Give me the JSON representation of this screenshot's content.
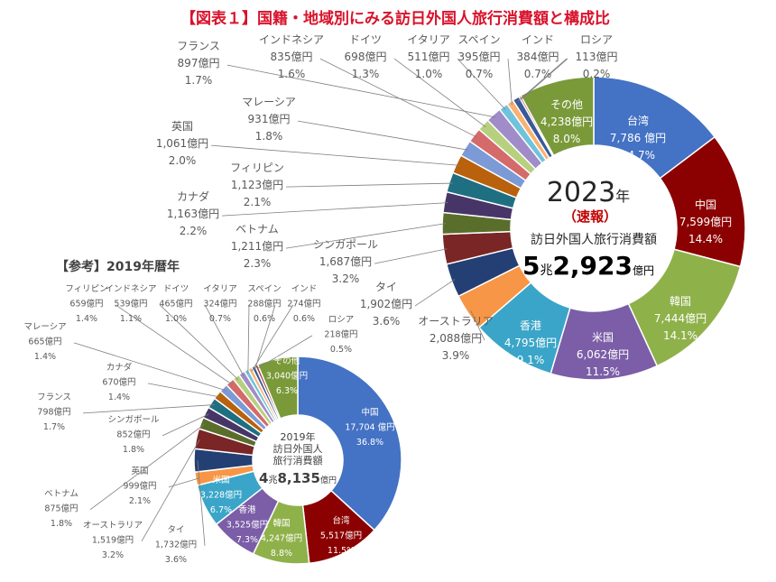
{
  "title": "【図表１】国籍・地域別にみる訪日外国人旅行消費額と構成比",
  "title_bracket": "【図表１】",
  "title_main": "国籍・地域別にみる訪日外国人旅行消費額と構成比",
  "colors": {
    "title_red": "#d9122b",
    "red_text": "#c00000",
    "label_gray": "#595959",
    "leader_line": "#7f7f7f"
  },
  "chart_data": [
    {
      "type": "pie",
      "variant": "donut",
      "center_text": {
        "year": "2023",
        "year_suffix": "年",
        "note": "（速報）",
        "caption": "訪日外国人旅行消費額",
        "total_cho": "5",
        "cho": "兆",
        "total_rest": "2,923",
        "oku_yen": "億円"
      },
      "slices": [
        {
          "name": "台湾",
          "amount": "7,786 億円",
          "value": 7786,
          "percent": "14.7%",
          "color": "#4472c4"
        },
        {
          "name": "中国",
          "amount": "7,599億円",
          "value": 7599,
          "percent": "14.4%",
          "color": "#8b0000"
        },
        {
          "name": "韓国",
          "amount": "7,444億円",
          "value": 7444,
          "percent": "14.1%",
          "color": "#8fb14a"
        },
        {
          "name": "米国",
          "amount": "6,062億円",
          "value": 6062,
          "percent": "11.5%",
          "color": "#7b5ea7"
        },
        {
          "name": "香港",
          "amount": "4,795億円",
          "value": 4795,
          "percent": "9.1%",
          "color": "#3aa5c8"
        },
        {
          "name": "オーストラリア",
          "amount": "2,088億円",
          "value": 2088,
          "percent": "3.9%",
          "color": "#f79646"
        },
        {
          "name": "タイ",
          "amount": "1,902億円",
          "value": 1902,
          "percent": "3.6%",
          "color": "#243f73"
        },
        {
          "name": "シンガポール",
          "amount": "1,687億円",
          "value": 1687,
          "percent": "3.2%",
          "color": "#7a2526"
        },
        {
          "name": "ベトナム",
          "amount": "1,211億円",
          "value": 1211,
          "percent": "2.3%",
          "color": "#5a6e2c"
        },
        {
          "name": "カナダ",
          "amount": "1,163億円",
          "value": 1163,
          "percent": "2.2%",
          "color": "#483568"
        },
        {
          "name": "フィリピン",
          "amount": "1,123億円",
          "value": 1123,
          "percent": "2.1%",
          "color": "#1f6f82"
        },
        {
          "name": "英国",
          "amount": "1,061億円",
          "value": 1061,
          "percent": "2.0%",
          "color": "#b9610c"
        },
        {
          "name": "マレーシア",
          "amount": "931億円",
          "value": 931,
          "percent": "1.8%",
          "color": "#7b9ad6"
        },
        {
          "name": "インドネシア",
          "amount": "835億円",
          "value": 835,
          "percent": "1.6%",
          "color": "#d46a6a"
        },
        {
          "name": "ドイツ",
          "amount": "698億円",
          "value": 698,
          "percent": "1.3%",
          "color": "#b7d07f"
        },
        {
          "name": "フランス",
          "amount": "897億円",
          "value": 897,
          "percent": "1.7%",
          "color": "#a08cc8"
        },
        {
          "name": "イタリア",
          "amount": "511億円",
          "value": 511,
          "percent": "1.0%",
          "color": "#6fc3dc"
        },
        {
          "name": "スペイン",
          "amount": "395億円",
          "value": 395,
          "percent": "0.7%",
          "color": "#fab171"
        },
        {
          "name": "インド",
          "amount": "384億円",
          "value": 384,
          "percent": "0.7%",
          "color": "#3b5998"
        },
        {
          "name": "ロシア",
          "amount": "113億円",
          "value": 113,
          "percent": "0.2%",
          "color": "#a33b3b"
        },
        {
          "name": "その他",
          "amount": "4,238億円",
          "value": 4238,
          "percent": "8.0%",
          "color": "#7a9a3a"
        }
      ]
    },
    {
      "type": "pie",
      "variant": "donut",
      "title": "【参考】2019年暦年",
      "center_text": {
        "line1": "2019年",
        "line2": "訪日外国人",
        "line3": "旅行消費額",
        "total_cho": "4",
        "cho": "兆",
        "total_rest": "8,135",
        "oku_yen": "億円"
      },
      "slices": [
        {
          "name": "中国",
          "amount": "17,704 億円",
          "value": 17704,
          "percent": "36.8%",
          "color": "#4472c4"
        },
        {
          "name": "台湾",
          "amount": "5,517億円",
          "value": 5517,
          "percent": "11.5%",
          "color": "#8b0000"
        },
        {
          "name": "韓国",
          "amount": "4,247億円",
          "value": 4247,
          "percent": "8.8%",
          "color": "#8fb14a"
        },
        {
          "name": "香港",
          "amount": "3,525億円",
          "value": 3525,
          "percent": "7.3%",
          "color": "#7b5ea7"
        },
        {
          "name": "米国",
          "amount": "3,228億円",
          "value": 3228,
          "percent": "6.7%",
          "color": "#3aa5c8"
        },
        {
          "name": "英国",
          "amount": "999億円",
          "value": 999,
          "percent": "2.1%",
          "color": "#f79646"
        },
        {
          "name": "タイ",
          "amount": "1,732億円",
          "value": 1732,
          "percent": "3.6%",
          "color": "#243f73"
        },
        {
          "name": "オーストラリア",
          "amount": "1,519億円",
          "value": 1519,
          "percent": "3.2%",
          "color": "#7a2526"
        },
        {
          "name": "ベトナム",
          "amount": "875億円",
          "value": 875,
          "percent": "1.8%",
          "color": "#5a6e2c"
        },
        {
          "name": "シンガポール",
          "amount": "852億円",
          "value": 852,
          "percent": "1.8%",
          "color": "#483568"
        },
        {
          "name": "フランス",
          "amount": "798億円",
          "value": 798,
          "percent": "1.7%",
          "color": "#1f6f82"
        },
        {
          "name": "カナダ",
          "amount": "670億円",
          "value": 670,
          "percent": "1.4%",
          "color": "#b9610c"
        },
        {
          "name": "マレーシア",
          "amount": "665億円",
          "value": 665,
          "percent": "1.4%",
          "color": "#7b9ad6"
        },
        {
          "name": "フィリピン",
          "amount": "659億円",
          "value": 659,
          "percent": "1.4%",
          "color": "#d46a6a"
        },
        {
          "name": "インドネシア",
          "amount": "539億円",
          "value": 539,
          "percent": "1.1%",
          "color": "#b7d07f"
        },
        {
          "name": "ドイツ",
          "amount": "465億円",
          "value": 465,
          "percent": "1.0%",
          "color": "#a08cc8"
        },
        {
          "name": "イタリア",
          "amount": "324億円",
          "value": 324,
          "percent": "0.7%",
          "color": "#6fc3dc"
        },
        {
          "name": "スペイン",
          "amount": "288億円",
          "value": 288,
          "percent": "0.6%",
          "color": "#fab171"
        },
        {
          "name": "インド",
          "amount": "274億円",
          "value": 274,
          "percent": "0.6%",
          "color": "#3b5998"
        },
        {
          "name": "ロシア",
          "amount": "218億円",
          "value": 218,
          "percent": "0.5%",
          "color": "#a33b3b"
        },
        {
          "name": "その他",
          "amount": "3,040億円",
          "value": 3040,
          "percent": "6.3%",
          "color": "#7a9a3a"
        }
      ]
    }
  ]
}
